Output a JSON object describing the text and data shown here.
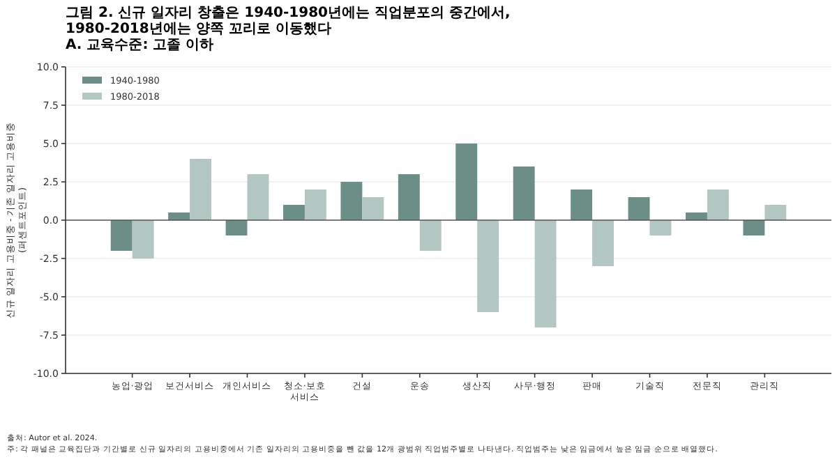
{
  "chart_data": {
    "type": "bar",
    "title": "그림 2. 신규 일자리 창출은 1940-1980년에는 직업분포의 중간에서,\n1980-2018년에는 양쪽 꼬리로 이동했다",
    "subtitle": "A. 교육수준: 고졸 이하",
    "ylabel": "신규 일자리 고용비중 - 기존 일자리 고용비중\n(퍼센트포인트)",
    "categories": [
      "농업·광업",
      "보건서비스",
      "개인서비스",
      "청소·보호\n서비스",
      "건설",
      "운송",
      "생산직",
      "사무·행정",
      "판매",
      "기술직",
      "전문직",
      "관리직"
    ],
    "series": [
      {
        "name": "1940-1980",
        "color": "#6b8e87",
        "values": [
          -2,
          0.5,
          -1,
          1,
          2.5,
          3,
          5,
          3.5,
          2,
          1.5,
          0.5,
          -1
        ]
      },
      {
        "name": "1980-2018",
        "color": "#b3c7c2",
        "values": [
          -2.5,
          4,
          3,
          2,
          1.5,
          -2,
          -6,
          -7,
          -3,
          -1,
          2,
          1
        ]
      }
    ],
    "ylim": [
      -10,
      10
    ],
    "yticks": [
      {
        "value": -10,
        "label": "-10.0"
      },
      {
        "value": -7.5,
        "label": "-7.5"
      },
      {
        "value": -5,
        "label": "-5.0"
      },
      {
        "value": -2.5,
        "label": "-2.5"
      },
      {
        "value": 0,
        "label": "0.0"
      },
      {
        "value": 2.5,
        "label": "2.5"
      },
      {
        "value": 5,
        "label": "5.0"
      },
      {
        "value": 7.5,
        "label": "7.5"
      },
      {
        "value": 10,
        "label": "10.0"
      }
    ],
    "grid": "y",
    "legend": "top left",
    "annotations": [
      "출처: Autor et al. 2024.",
      "주: 각 패널은 교육집단과 기간별로 신규 일자리의 고용비중에서 기존 일자리의 고용비중을 뺀 값을 12개 광범위 직업범주별로 나타낸다. 직업범주는 낮은 임금에서 높은 임금 순으로 배열했다."
    ]
  }
}
